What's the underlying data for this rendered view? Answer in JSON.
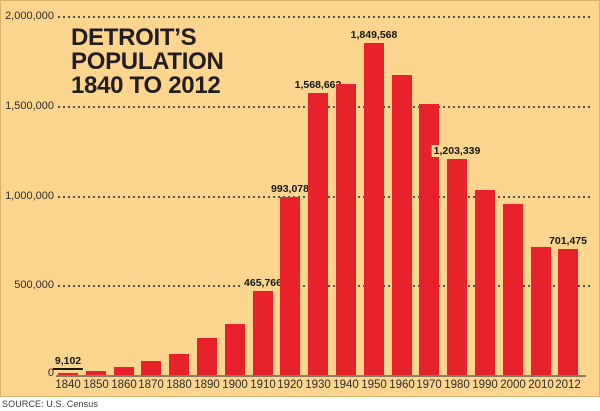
{
  "title": {
    "lines": [
      "DETROIT’S",
      "POPULATION",
      "1840 TO 2012"
    ]
  },
  "source": "SOURCE: U.S. Census",
  "colors": {
    "panel_background": "#FCD68F",
    "bar": "#E7222A",
    "title_text": "#221E1F",
    "tick_text": "#2E2B27",
    "value_label_text": "#141414",
    "gridline": "#57524B",
    "axis_line": "#8A7C60",
    "page_background": "#FFFFFF"
  },
  "chart_data": {
    "type": "bar",
    "title": "DETROIT'S POPULATION 1840 TO 2012",
    "categories": [
      "1840",
      "1850",
      "1860",
      "1870",
      "1880",
      "1890",
      "1900",
      "1910",
      "1920",
      "1930",
      "1940",
      "1950",
      "1960",
      "1970",
      "1980",
      "1990",
      "2000",
      "2010",
      "2012"
    ],
    "values": [
      9102,
      21019,
      45619,
      79577,
      116340,
      205877,
      285704,
      465766,
      993078,
      1568662,
      1623452,
      1849568,
      1670144,
      1511482,
      1203339,
      1027974,
      951270,
      713777,
      701475
    ],
    "bar_labels": [
      "9,102",
      null,
      null,
      null,
      null,
      null,
      null,
      "465,766",
      "993,078",
      "1,568,662",
      null,
      "1,849,568",
      null,
      null,
      "1,203,339",
      null,
      null,
      null,
      "701,475"
    ],
    "underlined_label": "1840",
    "xlabel": "",
    "ylabel": "",
    "ylim": [
      0,
      2000000
    ],
    "ytick_values": [
      0,
      500000,
      1000000,
      1500000,
      2000000
    ],
    "ytick_labels": [
      "0",
      "500,000",
      "1,000,000",
      "1,500,000",
      "2,000,000"
    ],
    "grid": "horizontal-dotted",
    "legend": false
  }
}
